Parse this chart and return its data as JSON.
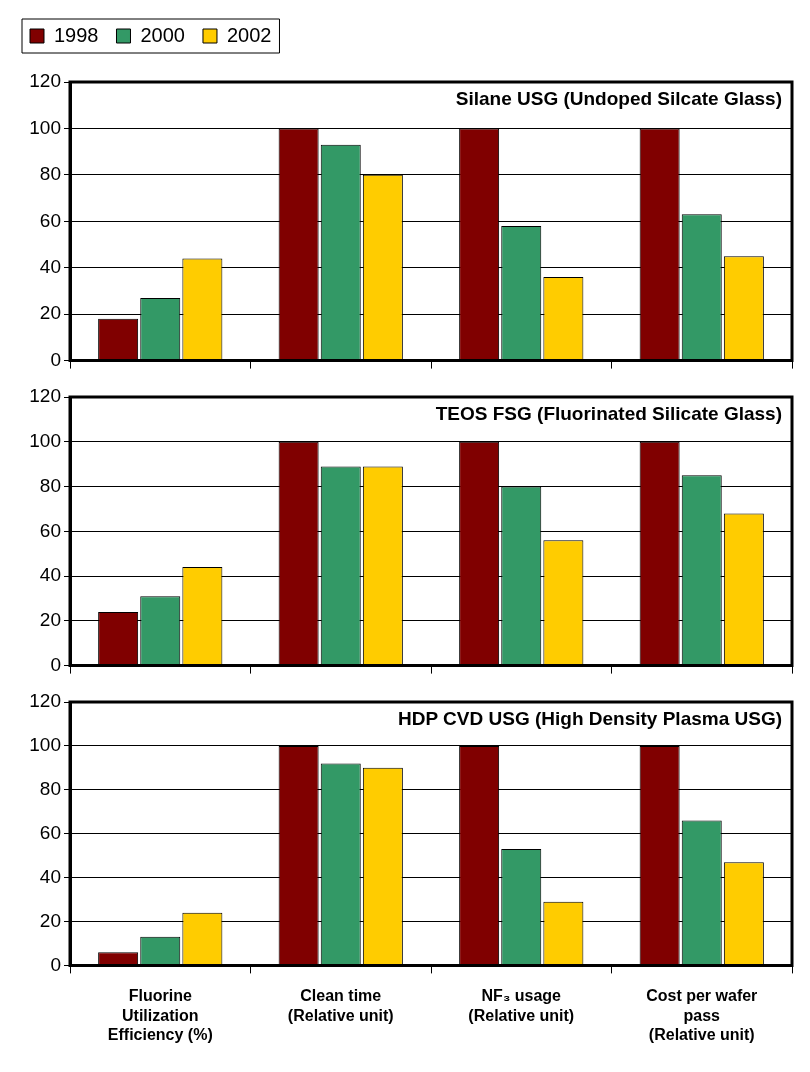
{
  "chart_data": [
    {
      "type": "bar",
      "title": "Silane USG (Undoped Silcate Glass)",
      "categories": [
        null,
        null,
        null,
        null
      ],
      "series": [
        {
          "name": "1998",
          "color": "#800000",
          "values": [
            18,
            100,
            100,
            100
          ]
        },
        {
          "name": "2000",
          "color": "#339966",
          "values": [
            27,
            93,
            58,
            63
          ]
        },
        {
          "name": "2002",
          "color": "#ffcc00",
          "values": [
            44,
            80,
            36,
            45
          ]
        }
      ],
      "ylim": [
        0,
        120
      ],
      "yticks": [
        0,
        20,
        40,
        60,
        80,
        100,
        120
      ],
      "grid": "y",
      "tick_labels": "y",
      "legend": "top left"
    },
    {
      "type": "bar",
      "title": "TEOS FSG (Fluorinated Silicate Glass)",
      "categories": [
        null,
        null,
        null,
        null
      ],
      "series": [
        {
          "color": "#800000",
          "values": [
            24,
            100,
            100,
            100
          ]
        },
        {
          "color": "#339966",
          "values": [
            31,
            89,
            80,
            85
          ]
        },
        {
          "color": "#ffcc00",
          "values": [
            44,
            89,
            56,
            68
          ]
        }
      ],
      "ylim": [
        0,
        120
      ],
      "yticks": [
        0,
        20,
        40,
        60,
        80,
        100,
        120
      ],
      "grid": "y",
      "tick_labels": "y"
    },
    {
      "type": "bar",
      "title": "HDP CVD USG (High Density Plasma USG)",
      "categories": [
        "Fluorine\nUtilization\nEfficiency (%)",
        "Clean time\n(Relative unit)",
        "NF₃ usage\n(Relative unit)",
        "Cost per wafer\npass\n(Relative unit)"
      ],
      "series": [
        {
          "color": "#800000",
          "values": [
            6,
            100,
            100,
            100
          ]
        },
        {
          "color": "#339966",
          "values": [
            13,
            92,
            53,
            66
          ]
        },
        {
          "color": "#ffcc00",
          "values": [
            24,
            90,
            29,
            47
          ]
        }
      ],
      "ylim": [
        0,
        120
      ],
      "yticks": [
        0,
        20,
        40,
        60,
        80,
        100,
        120
      ],
      "grid": "y"
    }
  ]
}
